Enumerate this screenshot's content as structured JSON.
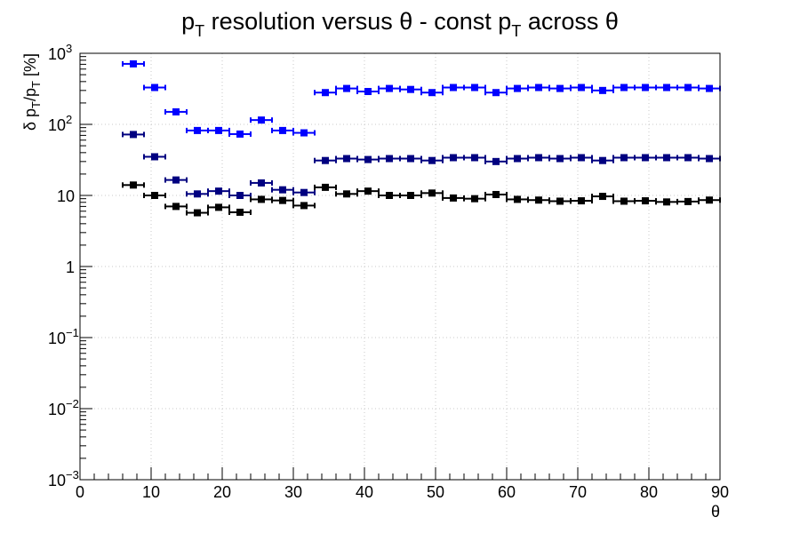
{
  "chart_data": {
    "type": "scatter",
    "title": {
      "p1": "p",
      "sub1": "T",
      "p2": " resolution versus θ - const p",
      "sub2": "T",
      "p3": " across θ"
    },
    "xlabel": "θ",
    "ylabel": {
      "p1": "δ p",
      "sub1": "T",
      "p2": "/p",
      "sub2": "T",
      "p3": " [%]"
    },
    "x_scale": "linear",
    "y_scale": "log",
    "xlim": [
      0,
      90
    ],
    "ylim": [
      0.001,
      1000
    ],
    "x_ticks": [
      0,
      10,
      20,
      30,
      40,
      50,
      60,
      70,
      80,
      90
    ],
    "x_tick_labels": [
      "0",
      "10",
      "20",
      "30",
      "40",
      "50",
      "60",
      "70",
      "80",
      "90"
    ],
    "y_ticks": [
      {
        "value": 0.001,
        "base": "10",
        "exp": "−3"
      },
      {
        "value": 0.01,
        "base": "10",
        "exp": "−2"
      },
      {
        "value": 0.1,
        "base": "10",
        "exp": "−1"
      },
      {
        "value": 1,
        "base": "1",
        "exp": ""
      },
      {
        "value": 10,
        "base": "10",
        "exp": ""
      },
      {
        "value": 100,
        "base": "10",
        "exp": "2"
      },
      {
        "value": 1000,
        "base": "10",
        "exp": "3"
      }
    ],
    "grid": true,
    "x_error_half_width": 1.5,
    "series": [
      {
        "color": "#0000ff",
        "x": [
          7.5,
          10.5,
          13.5,
          16.5,
          19.5,
          22.5,
          25.5,
          28.5,
          31.5,
          34.5,
          37.5,
          40.5,
          43.5,
          46.5,
          49.5,
          52.5,
          55.5,
          58.5,
          61.5,
          64.5,
          67.5,
          70.5,
          73.5,
          76.5,
          79.5,
          82.5,
          85.5,
          88.5
        ],
        "y": [
          710,
          330,
          150,
          82,
          82,
          73,
          115,
          82,
          76,
          280,
          320,
          290,
          320,
          310,
          280,
          330,
          330,
          280,
          320,
          330,
          320,
          330,
          300,
          330,
          330,
          330,
          330,
          320
        ]
      },
      {
        "color": "#000080",
        "x": [
          7.5,
          10.5,
          13.5,
          16.5,
          19.5,
          22.5,
          25.5,
          28.5,
          31.5,
          34.5,
          37.5,
          40.5,
          43.5,
          46.5,
          49.5,
          52.5,
          55.5,
          58.5,
          61.5,
          64.5,
          67.5,
          70.5,
          73.5,
          76.5,
          79.5,
          82.5,
          85.5,
          88.5
        ],
        "y": [
          72,
          35,
          16.5,
          10.5,
          11.5,
          10,
          15,
          12,
          11,
          31,
          33,
          32,
          33,
          33,
          31,
          34,
          34,
          30,
          33,
          34,
          33,
          34,
          31,
          34,
          34,
          34,
          34,
          33
        ]
      },
      {
        "color": "#000000",
        "x": [
          7.5,
          10.5,
          13.5,
          16.5,
          19.5,
          22.5,
          25.5,
          28.5,
          31.5,
          34.5,
          37.5,
          40.5,
          43.5,
          46.5,
          49.5,
          52.5,
          55.5,
          58.5,
          61.5,
          64.5,
          67.5,
          70.5,
          73.5,
          76.5,
          79.5,
          82.5,
          85.5,
          88.5
        ],
        "y": [
          14,
          10,
          7,
          5.7,
          6.8,
          5.8,
          8.8,
          8.5,
          7.2,
          13,
          10.5,
          11.5,
          10,
          10,
          10.8,
          9.2,
          9,
          10.3,
          8.8,
          8.6,
          8.3,
          8.4,
          9.7,
          8.3,
          8.4,
          8.1,
          8.2,
          8.6
        ]
      }
    ]
  }
}
